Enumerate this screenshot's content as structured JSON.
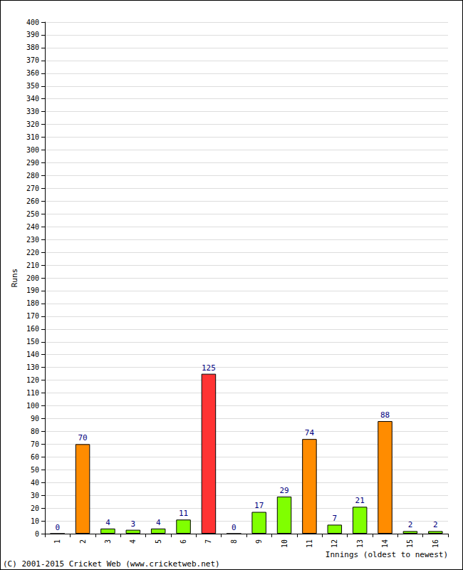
{
  "chart_data": {
    "type": "bar",
    "x_label": "Innings (oldest to newest)",
    "y_label": "Runs",
    "annotations": [
      "(C) 2001-2015 Cricket Web (www.cricketweb.net)"
    ],
    "categories": [
      "1",
      "2",
      "3",
      "4",
      "5",
      "6",
      "7",
      "8",
      "9",
      "10",
      "11",
      "12",
      "13",
      "14",
      "15",
      "16"
    ],
    "values": [
      0,
      70,
      4,
      3,
      4,
      11,
      125,
      0,
      17,
      29,
      74,
      7,
      21,
      88,
      2,
      2
    ],
    "colors": [
      "#80ff00",
      "#ff8c00",
      "#80ff00",
      "#80ff00",
      "#80ff00",
      "#80ff00",
      "#ff3333",
      "#80ff00",
      "#80ff00",
      "#80ff00",
      "#ff8c00",
      "#80ff00",
      "#80ff00",
      "#ff8c00",
      "#80ff00",
      "#80ff00"
    ],
    "ylim": [
      0,
      400
    ],
    "yticks": [
      0,
      10,
      20,
      30,
      40,
      50,
      60,
      70,
      80,
      90,
      100,
      110,
      120,
      130,
      140,
      150,
      160,
      170,
      180,
      190,
      200,
      210,
      220,
      230,
      240,
      250,
      260,
      270,
      280,
      290,
      300,
      310,
      320,
      330,
      340,
      350,
      360,
      370,
      380,
      390,
      400
    ],
    "grid": true,
    "data_labels": true
  }
}
